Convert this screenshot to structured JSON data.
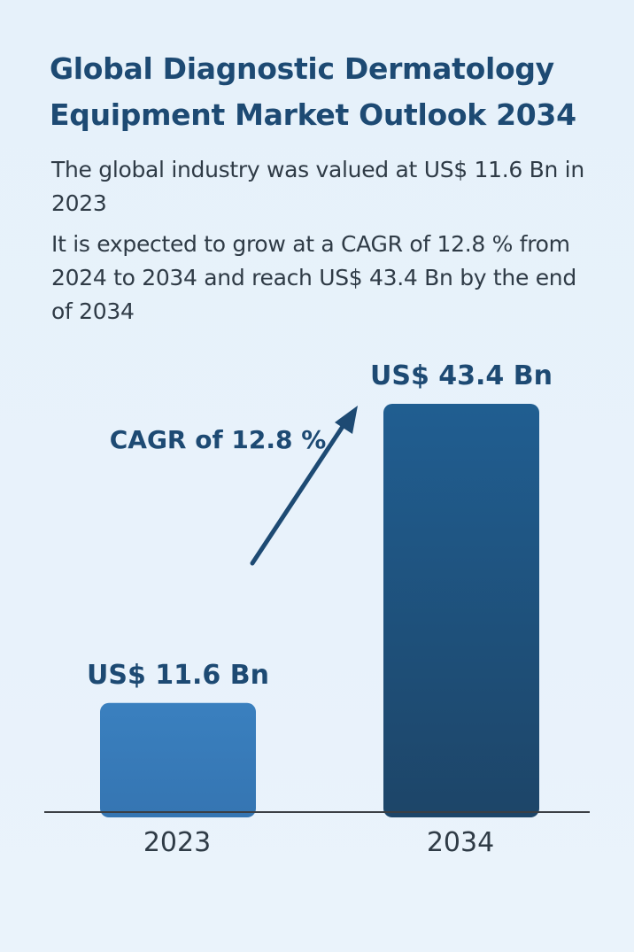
{
  "title": "Global Diagnostic Dermatology Equipment Market Outlook 2034",
  "description": {
    "line1": "The global industry was valued at US$ 11.6 Bn in 2023",
    "line2": "It is expected to grow at a CAGR of 12.8 % from 2024 to 2034 and reach US$ 43.4 Bn by the end of 2034"
  },
  "chart_data": {
    "type": "bar",
    "categories": [
      "2023",
      "2034"
    ],
    "values": [
      11.6,
      43.4
    ],
    "data_labels": [
      "US$ 11.6 Bn",
      "US$ 43.4 Bn"
    ],
    "unit": "US$ Bn",
    "annotation": "CAGR of 12.8 %",
    "grid": false,
    "legend": "none",
    "colors": [
      "#3a7fbd",
      "#1f5583"
    ]
  }
}
